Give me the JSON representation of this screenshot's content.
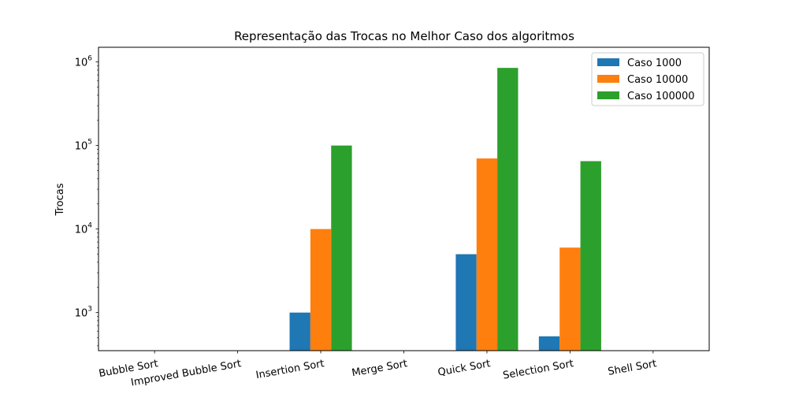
{
  "chart_data": {
    "type": "bar",
    "title": "Representação das Trocas no Melhor Caso dos algoritmos",
    "xlabel": "",
    "ylabel": "Trocas",
    "yscale": "log",
    "ylim": [
      350,
      1500000
    ],
    "yticks": [
      {
        "value": 1000,
        "base": "10",
        "exp": "3"
      },
      {
        "value": 10000,
        "base": "10",
        "exp": "4"
      },
      {
        "value": 100000,
        "base": "10",
        "exp": "5"
      },
      {
        "value": 1000000,
        "base": "10",
        "exp": "6"
      }
    ],
    "categories": [
      "Bubble Sort",
      "Improved Bubble Sort",
      "Insertion Sort",
      "Merge Sort",
      "Quick Sort",
      "Selection Sort",
      "Shell Sort"
    ],
    "series": [
      {
        "name": "Caso 1000",
        "color": "#1f77b4",
        "values": [
          0,
          0,
          1000,
          0,
          5000,
          520,
          0
        ]
      },
      {
        "name": "Caso 10000",
        "color": "#ff7f0e",
        "values": [
          0,
          0,
          10000,
          0,
          70000,
          6000,
          0
        ]
      },
      {
        "name": "Caso 100000",
        "color": "#2ca02c",
        "values": [
          0,
          0,
          100000,
          0,
          850000,
          65000,
          0
        ]
      }
    ],
    "legend_position": "top-right",
    "grid": false
  }
}
